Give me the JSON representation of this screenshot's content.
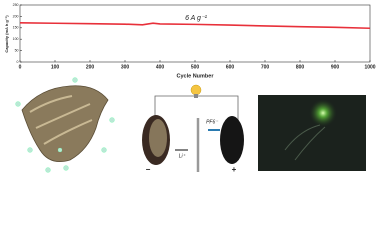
{
  "chart_data": {
    "type": "line",
    "x_label": "Cycle Number",
    "y_label": "Capacity (mA h g⁻¹)",
    "annotation": "6 A g⁻¹",
    "x": [
      0,
      100,
      200,
      300,
      350,
      380,
      400,
      500,
      600,
      700,
      800,
      900,
      1000
    ],
    "series": [
      {
        "name": "Capacity",
        "color": "#e8303a",
        "values": [
          172,
          170,
          168,
          166,
          163,
          170,
          167,
          165,
          162,
          158,
          155,
          152,
          148
        ]
      }
    ],
    "xlim": [
      0,
      1000
    ],
    "xticks": [
      0,
      100,
      200,
      300,
      400,
      500,
      600,
      700,
      800,
      900,
      1000
    ],
    "ylim": [
      0,
      250
    ],
    "yticks": [
      0,
      50,
      100,
      150,
      200,
      250
    ],
    "grid": false
  },
  "diagram": {
    "labels": [
      "PF6⁻",
      "Li⁺",
      "−",
      "+"
    ]
  }
}
